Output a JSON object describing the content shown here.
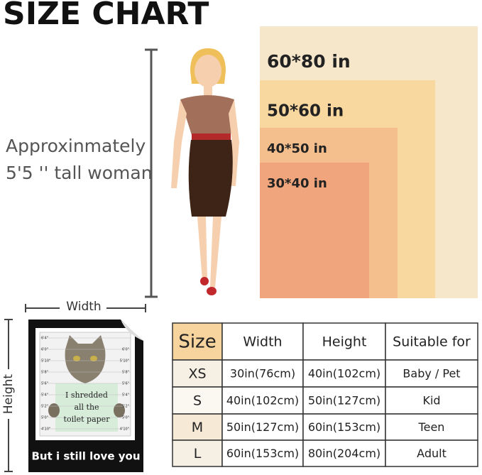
{
  "title": "SIZE CHART",
  "woman_label": [
    "Approxinmately",
    "5'5 '' tall woman"
  ],
  "sizes": [
    "60*80 in",
    "50*60 in",
    "40*50 in",
    "30*40 in"
  ],
  "width_label": "Width",
  "height_label": "Height",
  "blanket": {
    "ruler_left": [
      "6'4\"",
      "6'0\"",
      "5'10\"",
      "5'8\"",
      "5'6\"",
      "5'4\"",
      "5'2\"",
      "5'0\"",
      "4'10\""
    ],
    "ruler_right": [
      "6'0\"",
      "5'10\"",
      "5'8\"",
      "5'6\"",
      "5'4\"",
      "5'2\"",
      "5'0\"",
      "4'10\""
    ],
    "sign": [
      "I shredded",
      "all the",
      "toilet paper"
    ],
    "caption": "But i still love you"
  },
  "table": {
    "header": [
      "Size",
      "Width",
      "Height",
      "Suitable for"
    ],
    "rows": [
      [
        "XS",
        "30in(76cm)",
        "40in(102cm)",
        "Baby / Pet"
      ],
      [
        "S",
        "40in(102cm)",
        "50in(127cm)",
        "Kid"
      ],
      [
        "M",
        "50in(127cm)",
        "60in(153cm)",
        "Teen"
      ],
      [
        "L",
        "60in(153cm)",
        "80in(204cm)",
        "Adult"
      ]
    ]
  }
}
